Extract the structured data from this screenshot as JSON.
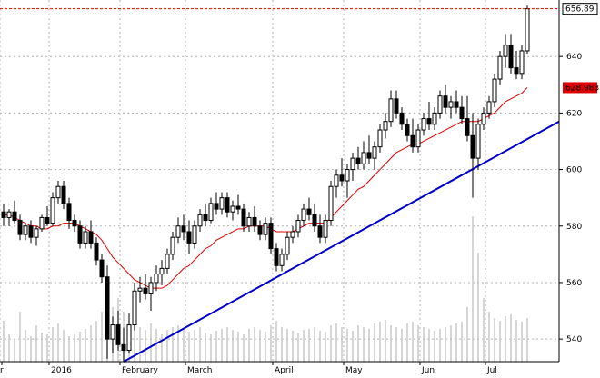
{
  "chart_data": {
    "type": "candlestick",
    "y_ticks": [
      540,
      560,
      580,
      600,
      620,
      640
    ],
    "ylim": [
      532,
      660
    ],
    "x_month_labels": [
      "r",
      "2016",
      "February",
      "March",
      "April",
      "May",
      "Jun",
      "Jul"
    ],
    "last_price_label": "656.89",
    "ma_value_label": "628.983",
    "last_price": 656.89,
    "ma_value": 628.983,
    "grid": true,
    "colors": {
      "up": "#ffffff",
      "down": "#000000",
      "ma_line": "#dd0000",
      "trend_line": "#0000cc",
      "volume": "#c8c8c8",
      "last_price_line": "#dd0000",
      "ma_badge_bg": "#dd0000"
    },
    "trend_line": {
      "start": {
        "date": "2016-01-20",
        "value": 532
      },
      "end": {
        "date": "2016-07-19",
        "value": 617
      }
    },
    "candles": [
      {
        "o": 585,
        "h": 588,
        "l": 580,
        "c": 583
      },
      {
        "o": 583,
        "h": 586,
        "l": 580,
        "c": 585
      },
      {
        "o": 585,
        "h": 589,
        "l": 581,
        "c": 582
      },
      {
        "o": 582,
        "h": 584,
        "l": 575,
        "c": 577
      },
      {
        "o": 577,
        "h": 581,
        "l": 575,
        "c": 580
      },
      {
        "o": 580,
        "h": 582,
        "l": 574,
        "c": 576
      },
      {
        "o": 576,
        "h": 580,
        "l": 573,
        "c": 579
      },
      {
        "o": 579,
        "h": 584,
        "l": 578,
        "c": 583
      },
      {
        "o": 583,
        "h": 587,
        "l": 580,
        "c": 581
      },
      {
        "o": 581,
        "h": 592,
        "l": 580,
        "c": 590
      },
      {
        "o": 590,
        "h": 596,
        "l": 588,
        "c": 594
      },
      {
        "o": 594,
        "h": 596,
        "l": 586,
        "c": 588
      },
      {
        "o": 588,
        "h": 590,
        "l": 579,
        "c": 582
      },
      {
        "o": 582,
        "h": 584,
        "l": 578,
        "c": 580
      },
      {
        "o": 580,
        "h": 582,
        "l": 572,
        "c": 574
      },
      {
        "o": 574,
        "h": 580,
        "l": 572,
        "c": 578
      },
      {
        "o": 578,
        "h": 582,
        "l": 572,
        "c": 574
      },
      {
        "o": 574,
        "h": 576,
        "l": 566,
        "c": 568
      },
      {
        "o": 568,
        "h": 570,
        "l": 560,
        "c": 562
      },
      {
        "o": 562,
        "h": 566,
        "l": 533,
        "c": 540
      },
      {
        "o": 540,
        "h": 548,
        "l": 535,
        "c": 545
      },
      {
        "o": 545,
        "h": 550,
        "l": 536,
        "c": 538
      },
      {
        "o": 538,
        "h": 544,
        "l": 532,
        "c": 536
      },
      {
        "o": 536,
        "h": 549,
        "l": 535,
        "c": 545
      },
      {
        "o": 545,
        "h": 560,
        "l": 543,
        "c": 557
      },
      {
        "o": 557,
        "h": 562,
        "l": 553,
        "c": 558
      },
      {
        "o": 558,
        "h": 563,
        "l": 554,
        "c": 556
      },
      {
        "o": 556,
        "h": 562,
        "l": 550,
        "c": 560
      },
      {
        "o": 560,
        "h": 566,
        "l": 557,
        "c": 563
      },
      {
        "o": 563,
        "h": 568,
        "l": 559,
        "c": 565
      },
      {
        "o": 565,
        "h": 572,
        "l": 563,
        "c": 570
      },
      {
        "o": 570,
        "h": 578,
        "l": 568,
        "c": 576
      },
      {
        "o": 576,
        "h": 583,
        "l": 574,
        "c": 580
      },
      {
        "o": 580,
        "h": 584,
        "l": 575,
        "c": 578
      },
      {
        "o": 578,
        "h": 582,
        "l": 570,
        "c": 574
      },
      {
        "o": 574,
        "h": 582,
        "l": 572,
        "c": 580
      },
      {
        "o": 580,
        "h": 586,
        "l": 578,
        "c": 584
      },
      {
        "o": 584,
        "h": 588,
        "l": 580,
        "c": 582
      },
      {
        "o": 582,
        "h": 590,
        "l": 581,
        "c": 588
      },
      {
        "o": 588,
        "h": 592,
        "l": 584,
        "c": 586
      },
      {
        "o": 586,
        "h": 592,
        "l": 584,
        "c": 590
      },
      {
        "o": 590,
        "h": 592,
        "l": 583,
        "c": 585
      },
      {
        "o": 585,
        "h": 589,
        "l": 582,
        "c": 587
      },
      {
        "o": 587,
        "h": 591,
        "l": 584,
        "c": 586
      },
      {
        "o": 586,
        "h": 588,
        "l": 578,
        "c": 580
      },
      {
        "o": 580,
        "h": 585,
        "l": 578,
        "c": 583
      },
      {
        "o": 583,
        "h": 587,
        "l": 578,
        "c": 580
      },
      {
        "o": 580,
        "h": 582,
        "l": 575,
        "c": 577
      },
      {
        "o": 577,
        "h": 583,
        "l": 575,
        "c": 581
      },
      {
        "o": 581,
        "h": 583,
        "l": 570,
        "c": 572
      },
      {
        "o": 572,
        "h": 574,
        "l": 564,
        "c": 566
      },
      {
        "o": 566,
        "h": 572,
        "l": 564,
        "c": 570
      },
      {
        "o": 570,
        "h": 578,
        "l": 568,
        "c": 576
      },
      {
        "o": 576,
        "h": 580,
        "l": 574,
        "c": 578
      },
      {
        "o": 578,
        "h": 584,
        "l": 576,
        "c": 582
      },
      {
        "o": 582,
        "h": 588,
        "l": 580,
        "c": 586
      },
      {
        "o": 586,
        "h": 590,
        "l": 582,
        "c": 584
      },
      {
        "o": 584,
        "h": 588,
        "l": 578,
        "c": 580
      },
      {
        "o": 580,
        "h": 584,
        "l": 574,
        "c": 576
      },
      {
        "o": 576,
        "h": 584,
        "l": 574,
        "c": 582
      },
      {
        "o": 582,
        "h": 596,
        "l": 580,
        "c": 594
      },
      {
        "o": 594,
        "h": 600,
        "l": 590,
        "c": 598
      },
      {
        "o": 598,
        "h": 604,
        "l": 594,
        "c": 596
      },
      {
        "o": 596,
        "h": 602,
        "l": 590,
        "c": 600
      },
      {
        "o": 600,
        "h": 606,
        "l": 596,
        "c": 604
      },
      {
        "o": 604,
        "h": 608,
        "l": 600,
        "c": 602
      },
      {
        "o": 602,
        "h": 610,
        "l": 600,
        "c": 606
      },
      {
        "o": 606,
        "h": 612,
        "l": 602,
        "c": 604
      },
      {
        "o": 604,
        "h": 610,
        "l": 600,
        "c": 608
      },
      {
        "o": 608,
        "h": 616,
        "l": 606,
        "c": 614
      },
      {
        "o": 614,
        "h": 620,
        "l": 611,
        "c": 617
      },
      {
        "o": 617,
        "h": 628,
        "l": 615,
        "c": 625
      },
      {
        "o": 625,
        "h": 628,
        "l": 618,
        "c": 620
      },
      {
        "o": 620,
        "h": 622,
        "l": 614,
        "c": 616
      },
      {
        "o": 616,
        "h": 618,
        "l": 610,
        "c": 612
      },
      {
        "o": 612,
        "h": 618,
        "l": 606,
        "c": 608
      },
      {
        "o": 608,
        "h": 616,
        "l": 606,
        "c": 614
      },
      {
        "o": 614,
        "h": 620,
        "l": 612,
        "c": 618
      },
      {
        "o": 618,
        "h": 624,
        "l": 614,
        "c": 616
      },
      {
        "o": 616,
        "h": 622,
        "l": 614,
        "c": 620
      },
      {
        "o": 620,
        "h": 628,
        "l": 618,
        "c": 626
      },
      {
        "o": 626,
        "h": 630,
        "l": 620,
        "c": 622
      },
      {
        "o": 622,
        "h": 626,
        "l": 618,
        "c": 624
      },
      {
        "o": 624,
        "h": 628,
        "l": 620,
        "c": 622
      },
      {
        "o": 622,
        "h": 626,
        "l": 616,
        "c": 618
      },
      {
        "o": 618,
        "h": 626,
        "l": 610,
        "c": 612
      },
      {
        "o": 612,
        "h": 620,
        "l": 590,
        "c": 604
      },
      {
        "o": 604,
        "h": 618,
        "l": 600,
        "c": 616
      },
      {
        "o": 616,
        "h": 622,
        "l": 614,
        "c": 620
      },
      {
        "o": 620,
        "h": 626,
        "l": 618,
        "c": 624
      },
      {
        "o": 624,
        "h": 634,
        "l": 622,
        "c": 632
      },
      {
        "o": 632,
        "h": 642,
        "l": 630,
        "c": 640
      },
      {
        "o": 640,
        "h": 648,
        "l": 636,
        "c": 644
      },
      {
        "o": 644,
        "h": 648,
        "l": 634,
        "c": 636
      },
      {
        "o": 636,
        "h": 642,
        "l": 632,
        "c": 634
      },
      {
        "o": 634,
        "h": 644,
        "l": 632,
        "c": 642
      },
      {
        "o": 642,
        "h": 658,
        "l": 641,
        "c": 656.89
      }
    ],
    "ma_series": [
      584,
      584,
      583,
      582,
      581,
      580,
      580,
      579,
      579,
      580,
      580,
      581,
      581,
      581,
      580,
      579,
      578,
      577,
      575,
      572,
      569,
      567,
      565,
      563,
      561,
      560,
      559,
      558,
      558,
      558,
      559,
      561,
      563,
      565,
      566,
      568,
      570,
      572,
      573,
      575,
      576,
      577,
      578,
      579,
      579,
      580,
      580,
      580,
      580,
      579,
      578,
      578,
      578,
      578,
      579,
      580,
      581,
      581,
      581,
      581,
      583,
      585,
      587,
      589,
      591,
      593,
      594,
      596,
      598,
      600,
      602,
      604,
      606,
      607,
      608,
      609,
      609,
      610,
      611,
      612,
      613,
      614,
      615,
      616,
      617,
      617,
      617,
      617,
      618,
      619,
      620,
      622,
      624,
      625,
      626,
      627,
      628.983
    ],
    "volume": [
      45,
      30,
      25,
      55,
      35,
      28,
      40,
      32,
      30,
      38,
      42,
      35,
      28,
      30,
      33,
      36,
      40,
      45,
      55,
      90,
      60,
      70,
      55,
      45,
      40,
      38,
      35,
      42,
      36,
      30,
      35,
      38,
      40,
      36,
      33,
      35,
      38,
      32,
      30,
      34,
      36,
      38,
      35,
      33,
      30,
      36,
      38,
      35,
      33,
      40,
      45,
      38,
      36,
      34,
      32,
      35,
      36,
      38,
      34,
      33,
      40,
      42,
      38,
      36,
      34,
      40,
      38,
      36,
      42,
      44,
      46,
      40,
      38,
      36,
      42,
      44,
      40,
      38,
      36,
      34,
      36,
      38,
      40,
      42,
      44,
      60,
      160,
      120,
      70,
      55,
      48,
      45,
      50,
      52,
      46,
      44,
      48
    ]
  }
}
